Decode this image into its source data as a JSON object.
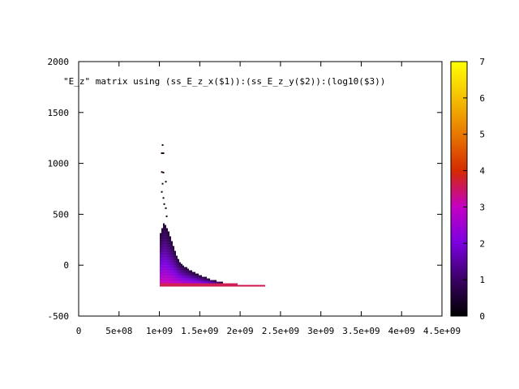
{
  "chart_data": {
    "type": "heatmap",
    "title": "",
    "xlabel": "",
    "ylabel": "",
    "xlim": [
      0,
      4500000000
    ],
    "ylim": [
      -500,
      2000
    ],
    "x_ticks": [
      {
        "value": 0,
        "label": "0"
      },
      {
        "value": 500000000,
        "label": "5e+08"
      },
      {
        "value": 1000000000,
        "label": "1e+09"
      },
      {
        "value": 1500000000,
        "label": "1.5e+09"
      },
      {
        "value": 2000000000,
        "label": "2e+09"
      },
      {
        "value": 2500000000,
        "label": "2.5e+09"
      },
      {
        "value": 3000000000,
        "label": "3e+09"
      },
      {
        "value": 3500000000,
        "label": "3.5e+09"
      },
      {
        "value": 4000000000,
        "label": "4e+09"
      },
      {
        "value": 4500000000,
        "label": "4.5e+09"
      }
    ],
    "y_ticks": [
      {
        "value": -500,
        "label": "-500"
      },
      {
        "value": 0,
        "label": "0"
      },
      {
        "value": 500,
        "label": "500"
      },
      {
        "value": 1000,
        "label": "1000"
      },
      {
        "value": 1500,
        "label": "1500"
      },
      {
        "value": 2000,
        "label": "2000"
      }
    ],
    "grid": false,
    "legend": {
      "position": "top-left",
      "entry": "\"E_z\" matrix using (ss_E_z_x($1)):(ss_E_z_y($2)):(log10($3))"
    },
    "colorbar": {
      "range": [
        0,
        7
      ],
      "ticks": [
        {
          "value": 0,
          "label": "0"
        },
        {
          "value": 1,
          "label": "1"
        },
        {
          "value": 2,
          "label": "2"
        },
        {
          "value": 3,
          "label": "3"
        },
        {
          "value": 4,
          "label": "4"
        },
        {
          "value": 5,
          "label": "5"
        },
        {
          "value": 6,
          "label": "6"
        },
        {
          "value": 7,
          "label": "7"
        }
      ],
      "palette": [
        "#000000",
        "#3a0064",
        "#7a00e0",
        "#c400c4",
        "#d52a00",
        "#e87800",
        "#f5c000",
        "#ffff00"
      ]
    },
    "data_region": {
      "x_min": 1000000000,
      "x_max": 2300000000,
      "y_floor": -210,
      "spike_points": [
        {
          "x": 1040000000,
          "y": 1180
        },
        {
          "x": 1030000000,
          "y": 1100
        },
        {
          "x": 1050000000,
          "y": 1100
        },
        {
          "x": 1030000000,
          "y": 915
        },
        {
          "x": 1050000000,
          "y": 910
        },
        {
          "x": 1080000000,
          "y": 820
        },
        {
          "x": 1040000000,
          "y": 800
        },
        {
          "x": 1030000000,
          "y": 720
        },
        {
          "x": 1050000000,
          "y": 660
        },
        {
          "x": 1060000000,
          "y": 600
        },
        {
          "x": 1080000000,
          "y": 560
        },
        {
          "x": 1090000000,
          "y": 480
        }
      ],
      "envelope": [
        {
          "x": 1000000000,
          "y": 300
        },
        {
          "x": 1050000000,
          "y": 420
        },
        {
          "x": 1100000000,
          "y": 330
        },
        {
          "x": 1150000000,
          "y": 220
        },
        {
          "x": 1200000000,
          "y": 100
        },
        {
          "x": 1250000000,
          "y": 20
        },
        {
          "x": 1300000000,
          "y": -20
        },
        {
          "x": 1400000000,
          "y": -70
        },
        {
          "x": 1500000000,
          "y": -110
        },
        {
          "x": 1600000000,
          "y": -140
        },
        {
          "x": 1700000000,
          "y": -165
        },
        {
          "x": 1800000000,
          "y": -180
        },
        {
          "x": 1900000000,
          "y": -190
        },
        {
          "x": 2000000000,
          "y": -196
        },
        {
          "x": 2100000000,
          "y": -200
        },
        {
          "x": 2200000000,
          "y": -204
        },
        {
          "x": 2300000000,
          "y": -207
        }
      ],
      "z_bottom": 3.5,
      "z_top": 0.5
    }
  }
}
